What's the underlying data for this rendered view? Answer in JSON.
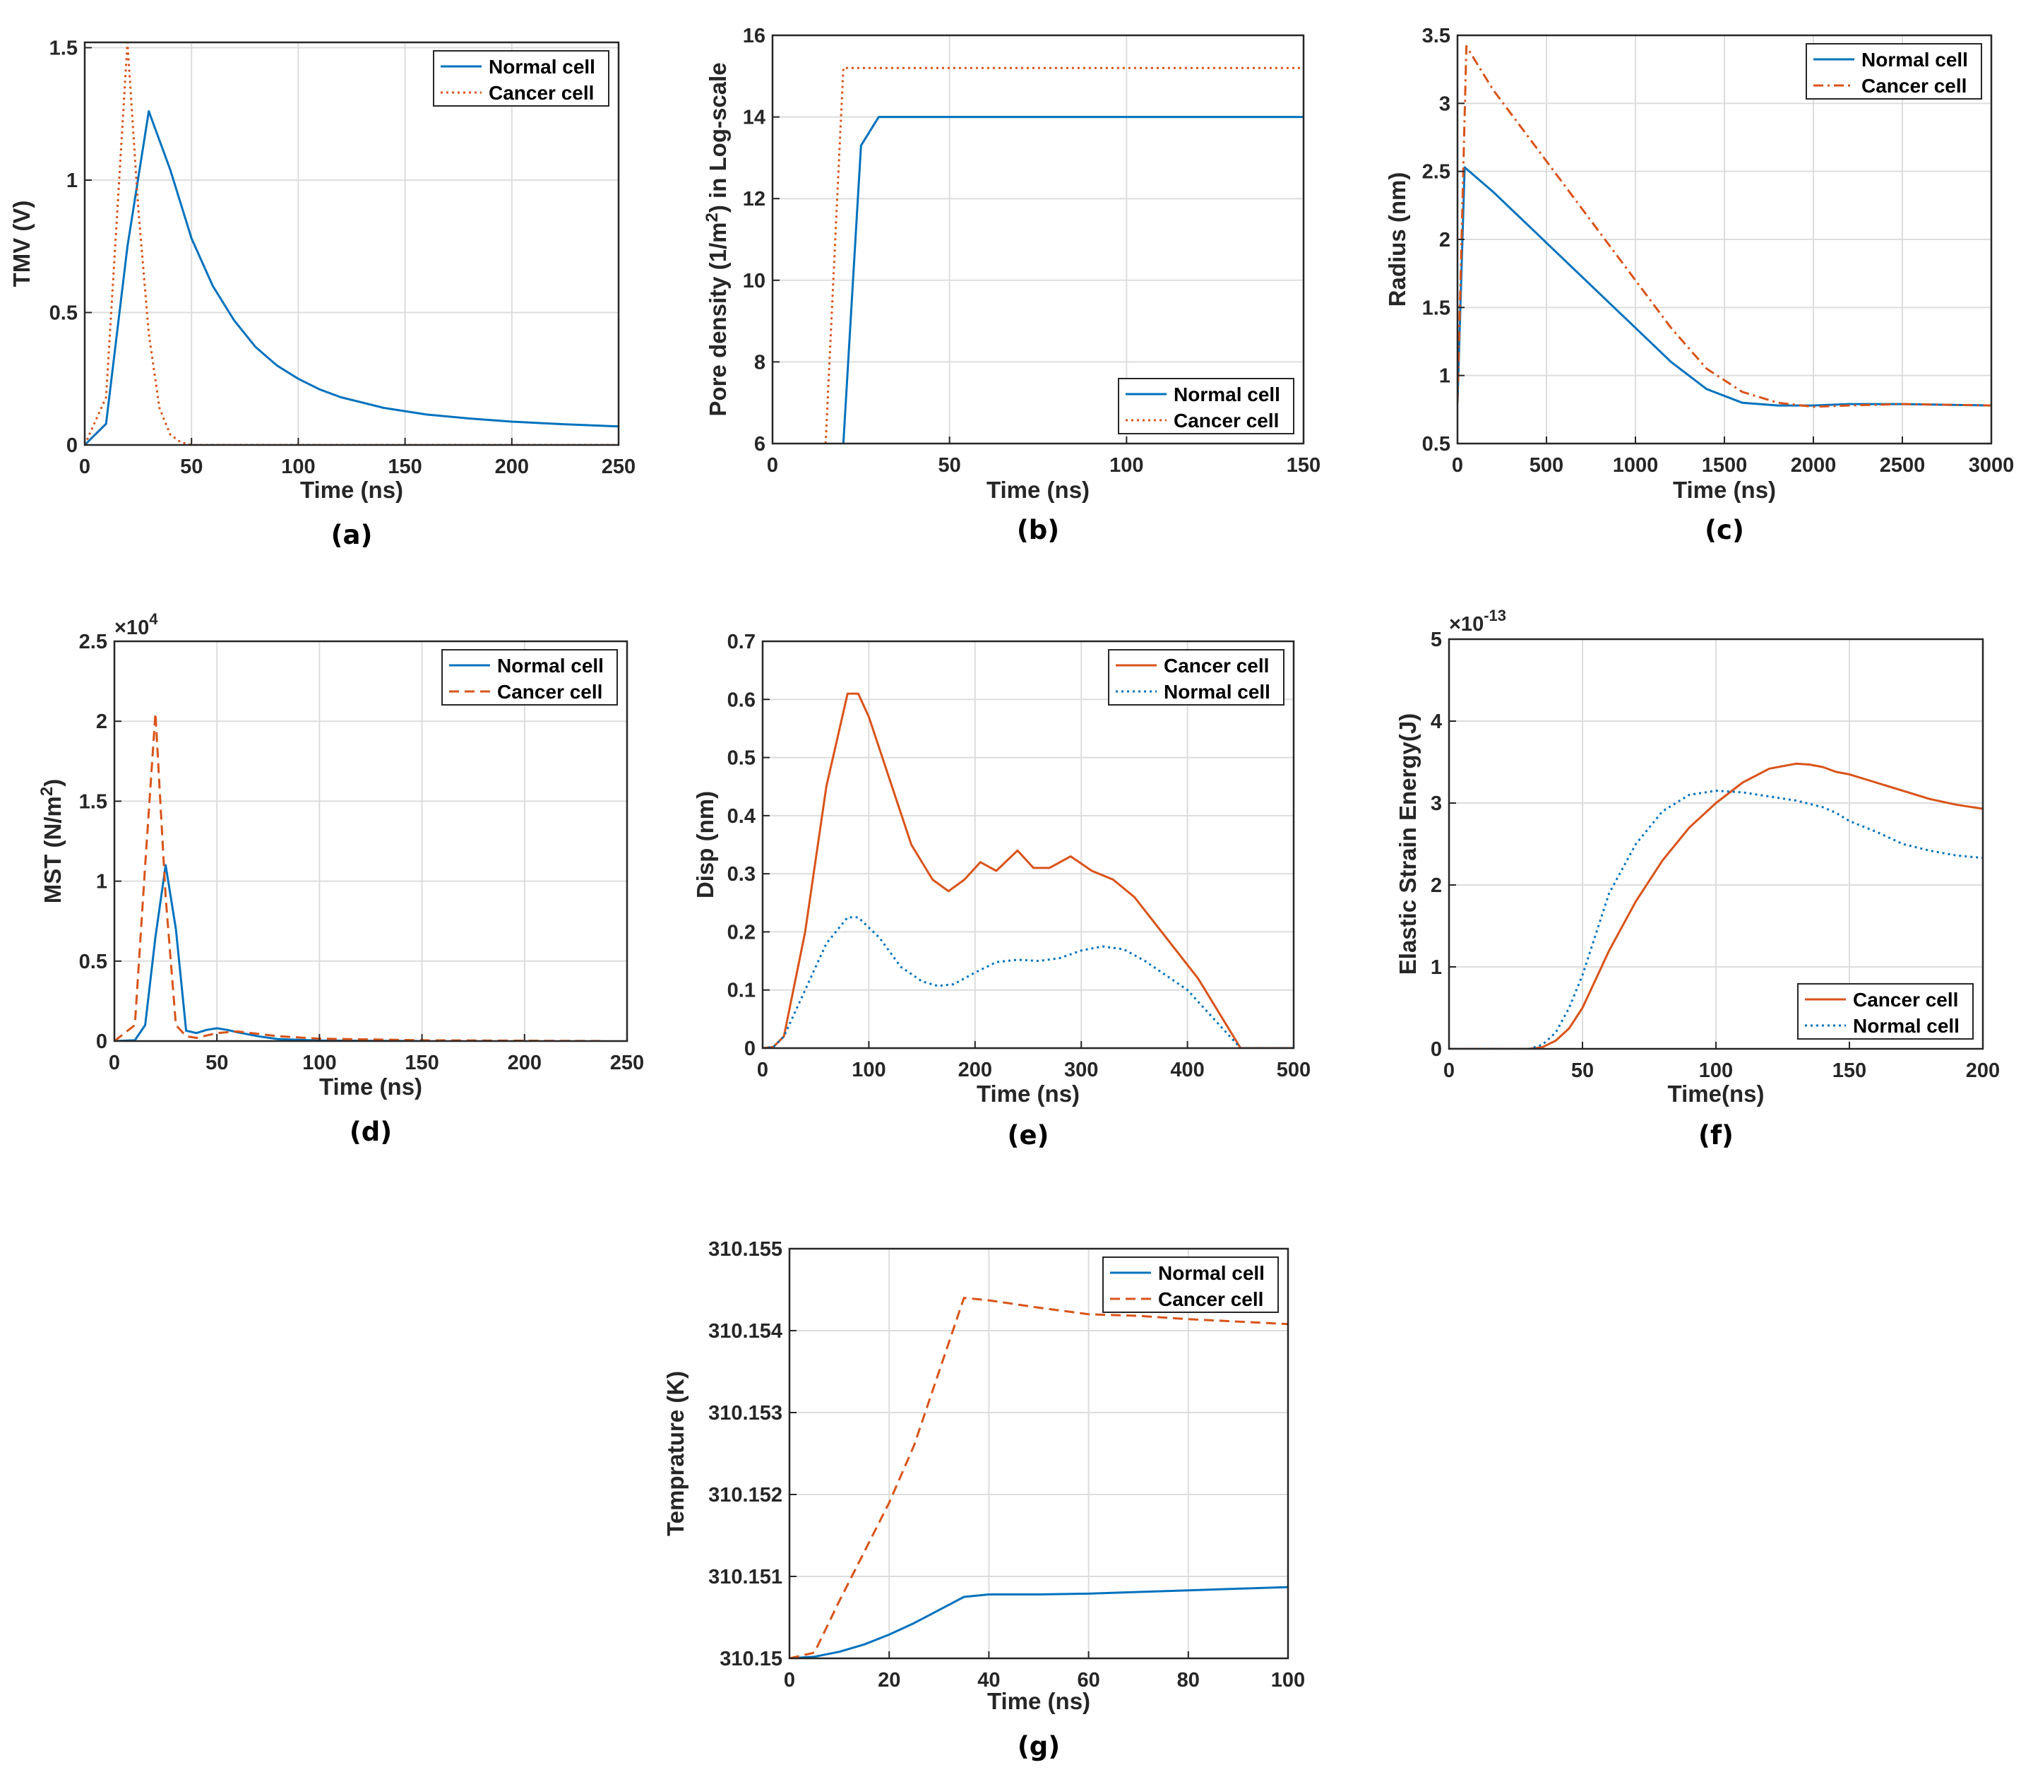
{
  "colors": {
    "normal": "#0072BD",
    "cancer": "#D95319",
    "grid": "#dddddd",
    "axis": "#262626"
  },
  "chart_data": [
    {
      "type": "line",
      "panel_label": "(a)",
      "xlabel": "Time (ns)",
      "ylabel": "TMV (V)",
      "xlim": [
        0,
        250
      ],
      "ylim": [
        0,
        1.52
      ],
      "xticks": [
        0,
        50,
        100,
        150,
        200,
        250
      ],
      "xtick_labels": [
        "0",
        "50",
        "100",
        "150",
        "200",
        "250"
      ],
      "yticks": [
        0,
        0.5,
        1,
        1.5
      ],
      "ytick_labels": [
        "0",
        "0.5",
        "1",
        "1.5"
      ],
      "legend_position": "top-right",
      "series": [
        {
          "name": "Normal cell",
          "color": "normal",
          "dash": "solid",
          "x": [
            0,
            10,
            20,
            30,
            40,
            50,
            60,
            70,
            80,
            90,
            100,
            110,
            120,
            140,
            160,
            180,
            200,
            225,
            250
          ],
          "y": [
            0,
            0.08,
            0.75,
            1.26,
            1.04,
            0.78,
            0.6,
            0.47,
            0.37,
            0.3,
            0.25,
            0.21,
            0.18,
            0.14,
            0.115,
            0.1,
            0.088,
            0.078,
            0.07
          ]
        },
        {
          "name": "Cancer cell",
          "color": "cancer",
          "dash": "dot",
          "x": [
            0,
            10,
            15,
            20,
            25,
            30,
            35,
            40,
            45,
            50,
            250
          ],
          "y": [
            0,
            0.18,
            0.85,
            1.52,
            0.9,
            0.42,
            0.14,
            0.04,
            0.01,
            0,
            0
          ]
        }
      ]
    },
    {
      "type": "line",
      "panel_label": "(b)",
      "xlabel": "Time (ns)",
      "ylabel": "Pore density (1/m",
      "ylabel_sup": "2",
      "ylabel_tail": ") in Log-scale",
      "xlim": [
        0,
        150
      ],
      "ylim": [
        6,
        16
      ],
      "xticks": [
        0,
        50,
        100,
        150
      ],
      "xtick_labels": [
        "0",
        "50",
        "100",
        "150"
      ],
      "yticks": [
        6,
        8,
        10,
        12,
        14,
        16
      ],
      "ytick_labels": [
        "6",
        "8",
        "10",
        "12",
        "14",
        "16"
      ],
      "legend_position": "bottom-right",
      "series": [
        {
          "name": "Normal cell",
          "color": "normal",
          "dash": "solid",
          "x": [
            20,
            25,
            30,
            150
          ],
          "y": [
            6,
            13.3,
            14,
            14
          ]
        },
        {
          "name": "Cancer cell",
          "color": "cancer",
          "dash": "dot",
          "x": [
            15,
            20,
            150
          ],
          "y": [
            6,
            15.2,
            15.2
          ]
        }
      ]
    },
    {
      "type": "line",
      "panel_label": "(c)",
      "xlabel": "Time (ns)",
      "ylabel": "Radius (nm)",
      "xlim": [
        0,
        3000
      ],
      "ylim": [
        0.5,
        3.5
      ],
      "xticks": [
        0,
        500,
        1000,
        1500,
        2000,
        2500,
        3000
      ],
      "xtick_labels": [
        "0",
        "500",
        "1000",
        "1500",
        "2000",
        "2500",
        "3000"
      ],
      "yticks": [
        0.5,
        1,
        1.5,
        2,
        2.5,
        3,
        3.5
      ],
      "ytick_labels": [
        "0.5",
        "1",
        "1.5",
        "2",
        "2.5",
        "3",
        "3.5"
      ],
      "legend_position": "top-right",
      "series": [
        {
          "name": "Normal cell",
          "color": "normal",
          "dash": "solid",
          "x": [
            0,
            40,
            200,
            400,
            600,
            800,
            1000,
            1200,
            1400,
            1600,
            1800,
            2000,
            2200,
            2500,
            3000
          ],
          "y": [
            0.8,
            2.53,
            2.35,
            2.1,
            1.85,
            1.6,
            1.35,
            1.1,
            0.9,
            0.8,
            0.78,
            0.78,
            0.79,
            0.79,
            0.78
          ]
        },
        {
          "name": "Cancer cell",
          "color": "cancer",
          "dash": "dashdot",
          "x": [
            0,
            50,
            200,
            400,
            600,
            800,
            1000,
            1200,
            1400,
            1600,
            1800,
            2000,
            2200,
            2500,
            3000
          ],
          "y": [
            0.8,
            3.42,
            3.1,
            2.75,
            2.4,
            2.05,
            1.7,
            1.35,
            1.05,
            0.88,
            0.8,
            0.77,
            0.78,
            0.79,
            0.78
          ]
        }
      ]
    },
    {
      "type": "line",
      "panel_label": "(d)",
      "xlabel": "Time (ns)",
      "ylabel": "MST (N/m",
      "ylabel_sup": "2",
      "ylabel_tail": ")",
      "multiplier_base": "×10",
      "multiplier_exp": "4",
      "xlim": [
        0,
        250
      ],
      "ylim": [
        0,
        25000
      ],
      "xticks": [
        0,
        50,
        100,
        150,
        200,
        250
      ],
      "xtick_labels": [
        "0",
        "50",
        "100",
        "150",
        "200",
        "250"
      ],
      "yticks": [
        0,
        5000,
        10000,
        15000,
        20000,
        25000
      ],
      "ytick_labels": [
        "0",
        "0.5",
        "1",
        "1.5",
        "2",
        "2.5"
      ],
      "legend_position": "top-right",
      "series": [
        {
          "name": "Normal cell",
          "color": "normal",
          "dash": "solid",
          "x": [
            0,
            10,
            15,
            20,
            25,
            30,
            35,
            40,
            45,
            50,
            55,
            60,
            70,
            80,
            100,
            150
          ],
          "y": [
            0,
            50,
            1000,
            6500,
            11000,
            7000,
            650,
            500,
            700,
            800,
            700,
            550,
            300,
            120,
            30,
            0
          ]
        },
        {
          "name": "Cancer cell",
          "color": "cancer",
          "dash": "dash",
          "x": [
            0,
            5,
            10,
            15,
            20,
            25,
            30,
            35,
            40,
            50,
            60,
            80,
            100,
            150,
            240
          ],
          "y": [
            0,
            500,
            1000,
            11000,
            20500,
            9000,
            1000,
            300,
            200,
            500,
            600,
            300,
            150,
            50,
            0
          ]
        }
      ]
    },
    {
      "type": "line",
      "panel_label": "(e)",
      "xlabel": "Time (ns)",
      "ylabel": "Disp (nm)",
      "xlim": [
        0,
        500
      ],
      "ylim": [
        0,
        0.7
      ],
      "xticks": [
        0,
        100,
        200,
        300,
        400,
        500
      ],
      "xtick_labels": [
        "0",
        "100",
        "200",
        "300",
        "400",
        "500"
      ],
      "yticks": [
        0,
        0.1,
        0.2,
        0.3,
        0.4,
        0.5,
        0.6,
        0.7
      ],
      "ytick_labels": [
        "0",
        "0.1",
        "0.2",
        "0.3",
        "0.4",
        "0.5",
        "0.6",
        "0.7"
      ],
      "legend_position": "top-right",
      "series": [
        {
          "name": "Cancer cell",
          "color": "cancer",
          "dash": "solid",
          "x": [
            0,
            10,
            20,
            40,
            60,
            80,
            90,
            100,
            120,
            140,
            160,
            175,
            190,
            205,
            220,
            240,
            255,
            270,
            290,
            310,
            330,
            350,
            380,
            410,
            450,
            500
          ],
          "y": [
            0,
            0.002,
            0.02,
            0.2,
            0.45,
            0.61,
            0.61,
            0.57,
            0.46,
            0.35,
            0.29,
            0.27,
            0.29,
            0.32,
            0.305,
            0.34,
            0.31,
            0.31,
            0.33,
            0.305,
            0.29,
            0.26,
            0.19,
            0.12,
            0,
            0
          ]
        },
        {
          "name": "Normal cell",
          "color": "normal",
          "dash": "dot",
          "x": [
            0,
            10,
            20,
            40,
            60,
            80,
            90,
            110,
            130,
            150,
            165,
            180,
            200,
            220,
            240,
            260,
            280,
            300,
            320,
            340,
            360,
            400,
            430,
            450,
            500
          ],
          "y": [
            0,
            0.002,
            0.02,
            0.1,
            0.18,
            0.225,
            0.225,
            0.19,
            0.14,
            0.115,
            0.107,
            0.11,
            0.13,
            0.148,
            0.152,
            0.15,
            0.155,
            0.168,
            0.175,
            0.17,
            0.15,
            0.1,
            0.04,
            0,
            0
          ]
        }
      ]
    },
    {
      "type": "line",
      "panel_label": "(f)",
      "xlabel": "Time(ns)",
      "ylabel": "Elastic Strain Energy(J)",
      "multiplier_base": "×10",
      "multiplier_exp": "-13",
      "xlim": [
        0,
        200
      ],
      "ylim": [
        0,
        5
      ],
      "xticks": [
        0,
        50,
        100,
        150,
        200
      ],
      "xtick_labels": [
        "0",
        "50",
        "100",
        "150",
        "200"
      ],
      "yticks": [
        0,
        1,
        2,
        3,
        4,
        5
      ],
      "ytick_labels": [
        "0",
        "1",
        "2",
        "3",
        "4",
        "5"
      ],
      "legend_position": "bottom-right",
      "series": [
        {
          "name": "Cancer cell",
          "color": "cancer",
          "dash": "solid",
          "x": [
            0,
            30,
            35,
            40,
            45,
            50,
            55,
            60,
            70,
            80,
            90,
            100,
            110,
            120,
            130,
            135,
            140,
            145,
            150,
            160,
            170,
            180,
            190,
            200
          ],
          "y": [
            0,
            0,
            0.02,
            0.1,
            0.25,
            0.5,
            0.85,
            1.2,
            1.8,
            2.3,
            2.7,
            3.0,
            3.25,
            3.42,
            3.48,
            3.47,
            3.44,
            3.38,
            3.35,
            3.25,
            3.15,
            3.05,
            2.98,
            2.93
          ]
        },
        {
          "name": "Normal cell",
          "color": "normal",
          "dash": "dot",
          "x": [
            0,
            30,
            35,
            40,
            45,
            50,
            55,
            60,
            70,
            80,
            90,
            100,
            110,
            120,
            130,
            140,
            145,
            150,
            160,
            170,
            180,
            190,
            200
          ],
          "y": [
            0,
            0,
            0.05,
            0.2,
            0.5,
            0.9,
            1.4,
            1.9,
            2.5,
            2.9,
            3.1,
            3.15,
            3.13,
            3.08,
            3.03,
            2.95,
            2.88,
            2.78,
            2.65,
            2.5,
            2.42,
            2.36,
            2.33
          ]
        }
      ]
    },
    {
      "type": "line",
      "panel_label": "(g)",
      "xlabel": "Time (ns)",
      "ylabel": "Temprature (K)",
      "xlim": [
        0,
        100
      ],
      "ylim": [
        310.15,
        310.155
      ],
      "xticks": [
        0,
        20,
        40,
        60,
        80,
        100
      ],
      "xtick_labels": [
        "0",
        "20",
        "40",
        "60",
        "80",
        "100"
      ],
      "yticks": [
        310.15,
        310.151,
        310.152,
        310.153,
        310.154,
        310.155
      ],
      "ytick_labels": [
        "310.15",
        "310.151",
        "310.152",
        "310.153",
        "310.154",
        "310.155"
      ],
      "legend_position": "top-right",
      "series": [
        {
          "name": "Normal cell",
          "color": "normal",
          "dash": "solid",
          "x": [
            0,
            5,
            10,
            15,
            20,
            25,
            30,
            35,
            40,
            50,
            60,
            70,
            80,
            90,
            100
          ],
          "y": [
            310.15,
            310.15002,
            310.15008,
            310.15017,
            310.15029,
            310.15043,
            310.15059,
            310.15075,
            310.15078,
            310.15078,
            310.15079,
            310.15081,
            310.15083,
            310.15085,
            310.15087
          ]
        },
        {
          "name": "Cancer cell",
          "color": "cancer",
          "dash": "dash",
          "x": [
            0,
            5,
            10,
            15,
            20,
            25,
            30,
            35,
            40,
            50,
            60,
            70,
            80,
            90,
            100
          ],
          "y": [
            310.15,
            310.15007,
            310.1507,
            310.1513,
            310.1519,
            310.1526,
            310.1535,
            310.1544,
            310.15437,
            310.15428,
            310.1542,
            310.15418,
            310.15414,
            310.15411,
            310.15408
          ]
        }
      ]
    }
  ]
}
